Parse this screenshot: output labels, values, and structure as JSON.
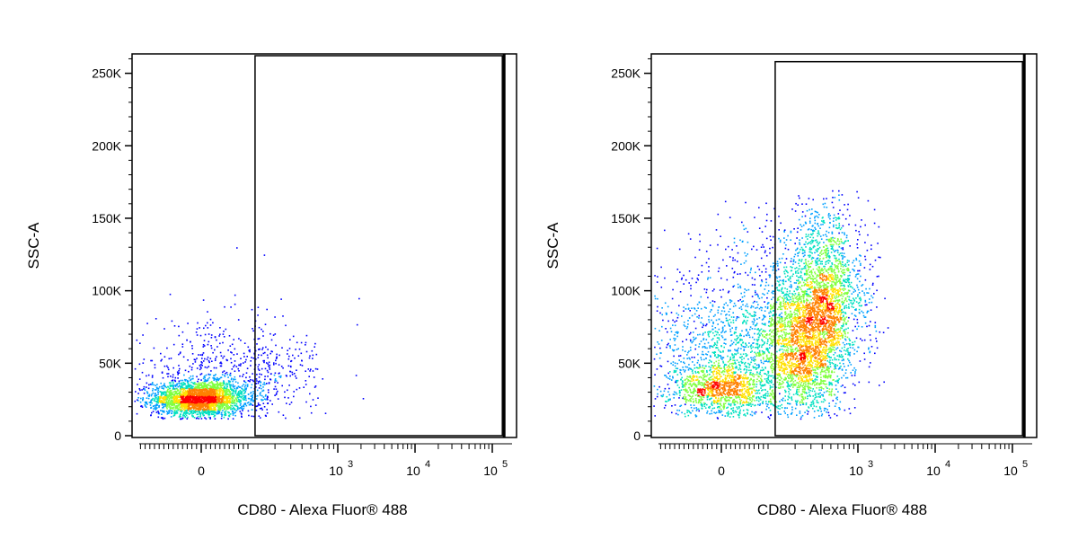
{
  "chart_data": [
    {
      "type": "scatter",
      "panel": "left",
      "xlabel": "CD80 - Alexa Fluor® 488",
      "ylabel": "SSC-A",
      "x_scale": "biexponential",
      "y_scale": "linear",
      "xlim": [
        -300,
        150000
      ],
      "ylim": [
        0,
        262144
      ],
      "x_ticks": [
        {
          "value": 0,
          "base": "0",
          "exp": ""
        },
        {
          "value": 1000,
          "base": "10",
          "exp": "3"
        },
        {
          "value": 10000,
          "base": "10",
          "exp": "4"
        },
        {
          "value": 100000,
          "base": "10",
          "exp": "5"
        }
      ],
      "y_ticks": [
        {
          "value": 0,
          "label": "0"
        },
        {
          "value": 50000,
          "label": "50K"
        },
        {
          "value": 100000,
          "label": "100K"
        },
        {
          "value": 150000,
          "label": "150K"
        },
        {
          "value": 200000,
          "label": "200K"
        },
        {
          "value": 250000,
          "label": "250K"
        }
      ],
      "gate": {
        "x_min": 120,
        "x_max": 135000,
        "y_min": 0,
        "y_max": 262144
      },
      "populations": [
        {
          "x_center": -5,
          "x_spread": 50,
          "y_center": 26000,
          "y_spread": 6000,
          "count": 2600
        },
        {
          "x_center": 30,
          "x_spread": 110,
          "y_center": 38000,
          "y_spread": 20000,
          "count": 650
        },
        {
          "x_center": 250,
          "x_spread": 180,
          "y_center": 45000,
          "y_spread": 14000,
          "count": 160
        }
      ],
      "outliers": [
        {
          "x": 1850,
          "y": 95000
        },
        {
          "x": 1750,
          "y": 77000
        },
        {
          "x": 1700,
          "y": 42000
        },
        {
          "x": 2100,
          "y": 26000
        },
        {
          "x": 150,
          "y": 125000
        },
        {
          "x": 75,
          "y": 130000
        }
      ],
      "density_colors": [
        "#0000ff",
        "#00a0ff",
        "#00e0c0",
        "#80ff40",
        "#ffe000",
        "#ff8000",
        "#ff0000"
      ]
    },
    {
      "type": "scatter",
      "panel": "right",
      "xlabel": "CD80 - Alexa Fluor® 488",
      "ylabel": "SSC-A",
      "x_scale": "biexponential",
      "y_scale": "linear",
      "xlim": [
        -300,
        150000
      ],
      "ylim": [
        0,
        262144
      ],
      "x_ticks": [
        {
          "value": 0,
          "base": "0",
          "exp": ""
        },
        {
          "value": 1000,
          "base": "10",
          "exp": "3"
        },
        {
          "value": 10000,
          "base": "10",
          "exp": "4"
        },
        {
          "value": 100000,
          "base": "10",
          "exp": "5"
        }
      ],
      "y_ticks": [
        {
          "value": 0,
          "label": "0"
        },
        {
          "value": 50000,
          "label": "50K"
        },
        {
          "value": 100000,
          "label": "100K"
        },
        {
          "value": 150000,
          "label": "150K"
        },
        {
          "value": 200000,
          "label": "200K"
        },
        {
          "value": 250000,
          "label": "250K"
        }
      ],
      "gate": {
        "x_min": 120,
        "x_max": 135000,
        "y_min": 0,
        "y_max": 258000
      },
      "populations": [
        {
          "x_center": 0,
          "x_spread": 55,
          "y_center": 32000,
          "y_spread": 9000,
          "count": 1100
        },
        {
          "x_center": 150,
          "x_spread": 150,
          "y_center": 58000,
          "y_spread": 22000,
          "count": 2300
        },
        {
          "x_center": 350,
          "x_spread": 220,
          "y_center": 90000,
          "y_spread": 32000,
          "count": 2700
        },
        {
          "x_center": 900,
          "x_spread": 500,
          "y_center": 95000,
          "y_spread": 30000,
          "count": 300
        }
      ],
      "outliers": [],
      "density_colors": [
        "#0000ff",
        "#00a0ff",
        "#00e0c0",
        "#80ff40",
        "#ffe000",
        "#ff8000",
        "#ff0000"
      ]
    }
  ]
}
